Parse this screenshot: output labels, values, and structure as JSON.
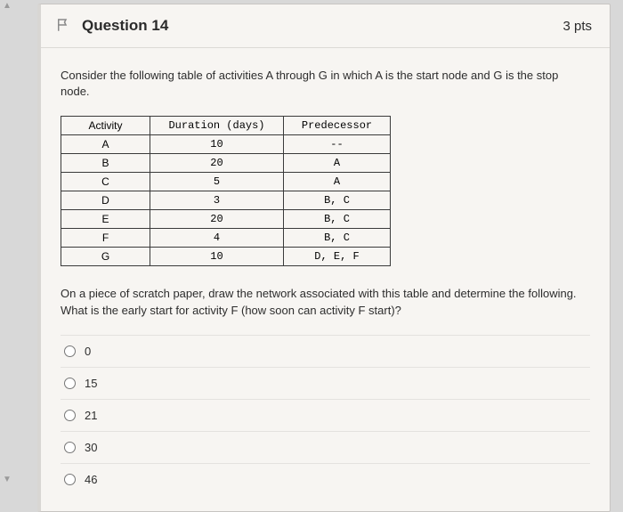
{
  "scrollbar": {
    "up_glyph": "▲",
    "down_glyph": "▼"
  },
  "header": {
    "title": "Question 14",
    "points": "3 pts"
  },
  "prompt_top": "Consider the following table of activities A through G in which A is the start node and G is the stop node.",
  "table": {
    "col_activity": "Activity",
    "col_duration": "Duration (days)",
    "col_predecessor": "Predecessor",
    "rows": [
      {
        "activity": "A",
        "duration": "10",
        "predecessor": "--"
      },
      {
        "activity": "B",
        "duration": "20",
        "predecessor": "A"
      },
      {
        "activity": "C",
        "duration": "5",
        "predecessor": "A"
      },
      {
        "activity": "D",
        "duration": "3",
        "predecessor": "B, C"
      },
      {
        "activity": "E",
        "duration": "20",
        "predecessor": "B, C"
      },
      {
        "activity": "F",
        "duration": "4",
        "predecessor": "B, C"
      },
      {
        "activity": "G",
        "duration": "10",
        "predecessor": "D, E, F"
      }
    ]
  },
  "prompt_bottom": "On a piece of scratch paper, draw the network associated with this table and determine the following. What is the early start for activity F (how soon can activity F start)?",
  "options": [
    "0",
    "15",
    "21",
    "30",
    "46"
  ],
  "colors": {
    "page_bg": "#d8d8d8",
    "card_bg": "#f7f5f2",
    "card_border": "#c7c5c2",
    "table_border": "#3a3a3a",
    "divider": "#e4e2df",
    "text": "#2d2d2d",
    "flag_stroke": "#8a8a8a"
  }
}
